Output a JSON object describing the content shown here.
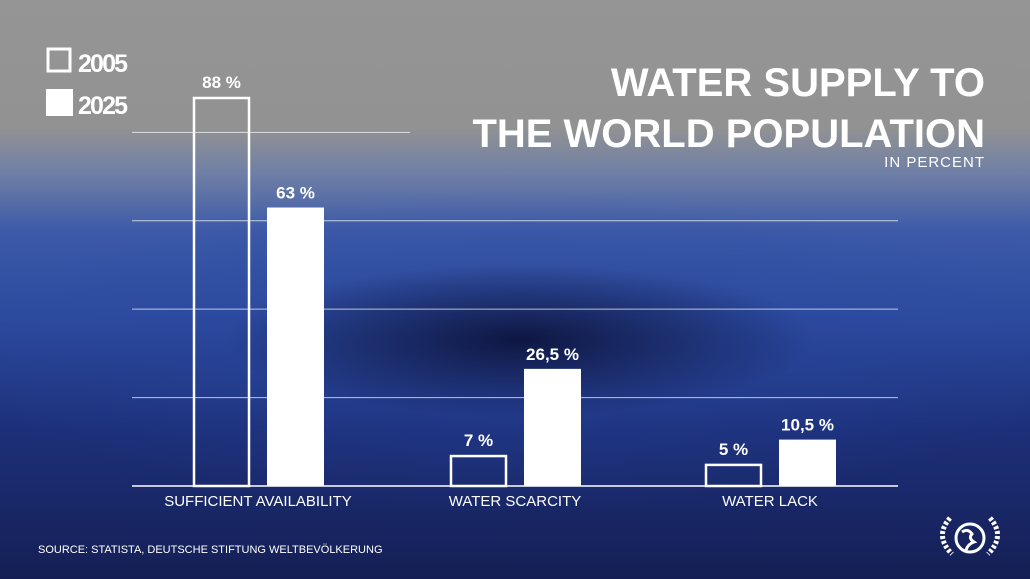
{
  "chart_data": {
    "type": "bar",
    "title": "WATER SUPPLY TO THE WORLD POPULATION",
    "title_lines": [
      "WATER SUPPLY TO",
      "THE WORLD POPULATION"
    ],
    "subtitle": "IN PERCENT",
    "categories": [
      "SUFFICIENT AVAILABILITY",
      "WATER SCARCITY",
      "WATER LACK"
    ],
    "series": [
      {
        "name": "2005",
        "style": "outline",
        "values": [
          88,
          7,
          5
        ],
        "labels": [
          "88 %",
          "7 %",
          "5 %"
        ]
      },
      {
        "name": "2025",
        "style": "filled",
        "values": [
          63,
          26.5,
          10.5
        ],
        "labels": [
          "63 %",
          "26,5 %",
          "10,5 %"
        ]
      }
    ],
    "ylim": [
      0,
      88
    ],
    "gridlines": [
      20,
      40,
      60,
      80
    ],
    "grid": true,
    "legend": "top-left",
    "source": "SOURCE: STATISTA, DEUTSCHE STIFTUNG WELTBEVÖLKERUNG"
  },
  "colors": {
    "bar": "#ffffff",
    "text": "#ffffff"
  },
  "logo": {
    "icon": "globe-laurel-icon"
  }
}
